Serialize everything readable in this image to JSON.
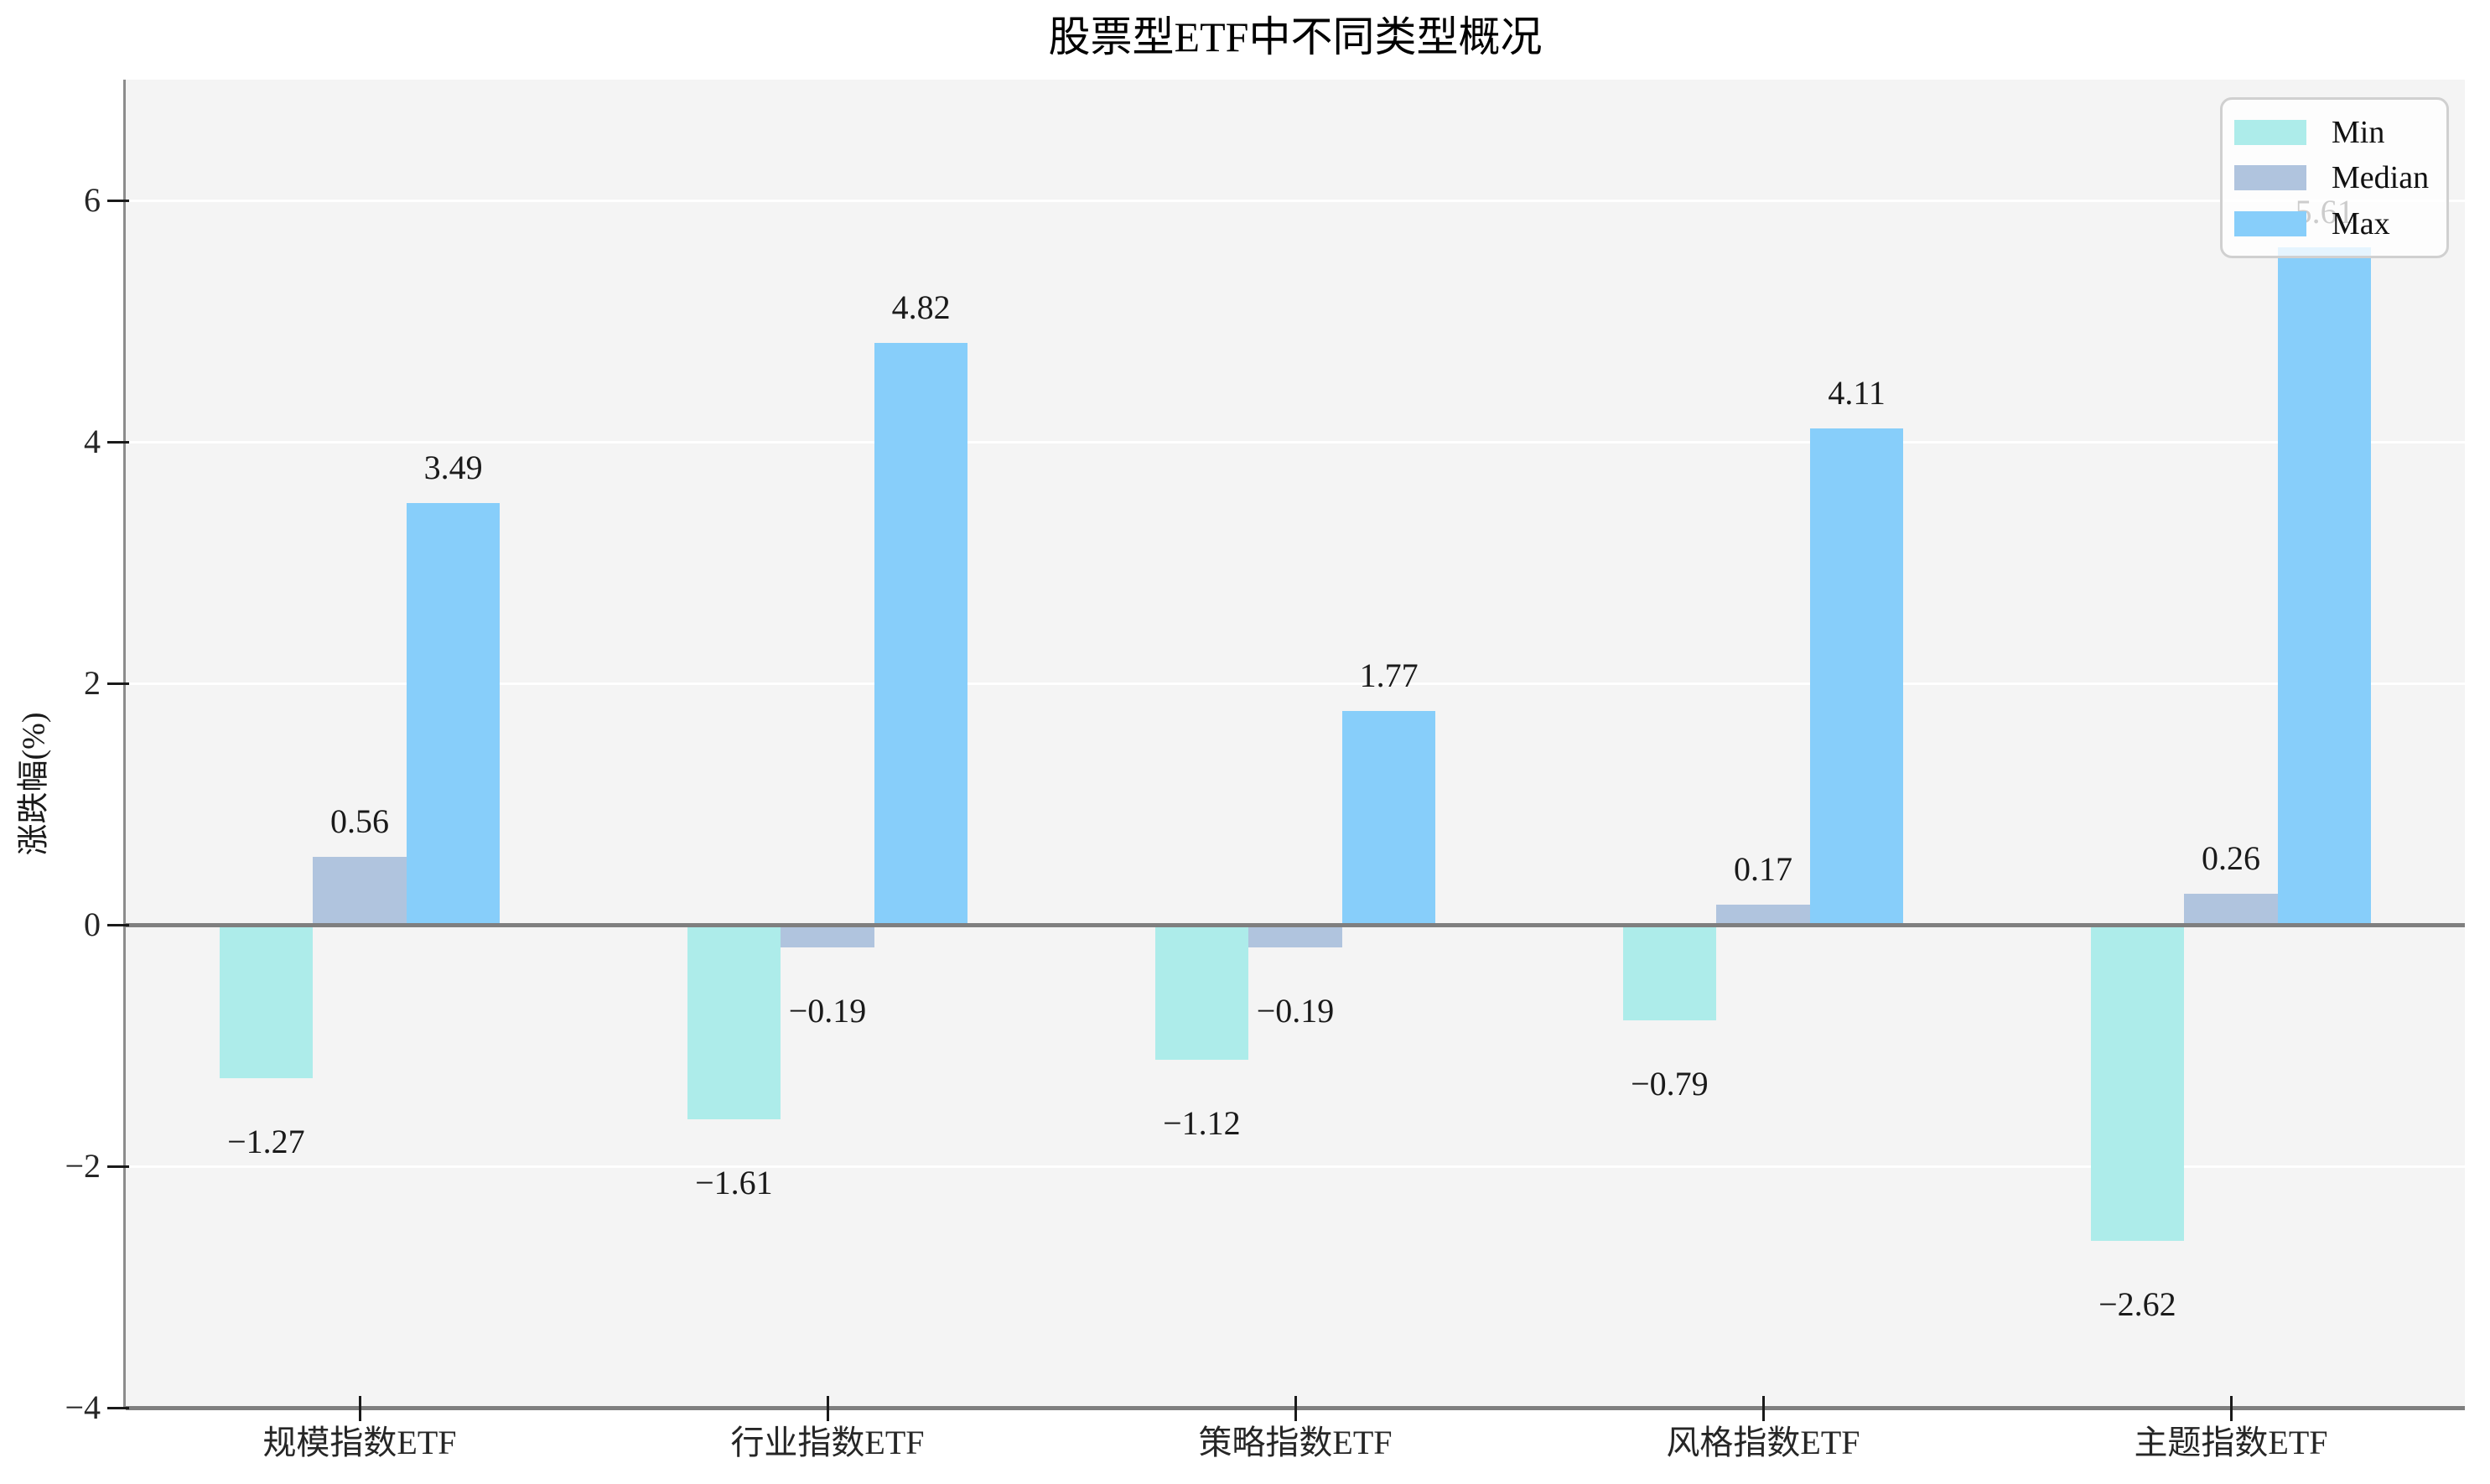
{
  "chart_data": {
    "type": "bar",
    "title": "股票型ETF中不同类型概况",
    "xlabel": "",
    "ylabel": "涨跌幅(%)",
    "categories": [
      "规模指数ETF",
      "行业指数ETF",
      "策略指数ETF",
      "风格指数ETF",
      "主题指数ETF"
    ],
    "series": [
      {
        "name": "Min",
        "color": "#ADECEA",
        "values": [
          -1.27,
          -1.61,
          -1.12,
          -0.79,
          -2.62
        ],
        "labels": [
          "−1.27",
          "−1.61",
          "−1.12",
          "−0.79",
          "−2.62"
        ]
      },
      {
        "name": "Median",
        "color": "#B0C4DE",
        "values": [
          0.56,
          -0.19,
          -0.19,
          0.17,
          0.26
        ],
        "labels": [
          "0.56",
          "−0.19",
          "−0.19",
          "0.17",
          "0.26"
        ]
      },
      {
        "name": "Max",
        "color": "#87CEFA",
        "values": [
          3.49,
          4.82,
          1.77,
          4.11,
          5.61
        ],
        "labels": [
          "3.49",
          "4.82",
          "1.77",
          "4.11",
          "5.61"
        ]
      }
    ],
    "ylim": [
      -4,
      7
    ],
    "yticks": [
      {
        "value": -4,
        "label": "−4"
      },
      {
        "value": -2,
        "label": "−2"
      },
      {
        "value": 0,
        "label": "0"
      },
      {
        "value": 2,
        "label": "2"
      },
      {
        "value": 4,
        "label": "4"
      },
      {
        "value": 6,
        "label": "6"
      }
    ],
    "grid": true,
    "legend_position": "upper right"
  },
  "legend": {
    "items": [
      {
        "label": "Min",
        "color": "#ADECEA"
      },
      {
        "label": "Median",
        "color": "#B0C4DE"
      },
      {
        "label": "Max",
        "color": "#87CEFA"
      }
    ]
  },
  "colors": {
    "figure_bg": "#ffffff",
    "plot_bg": "#f4f4f4",
    "grid": "#ffffff",
    "zero_line": "#7f7f7f",
    "spine": "#8c8c8c",
    "tick": "#1a1a1a",
    "text": "#262626",
    "legend_border": "#d0d0d0"
  }
}
